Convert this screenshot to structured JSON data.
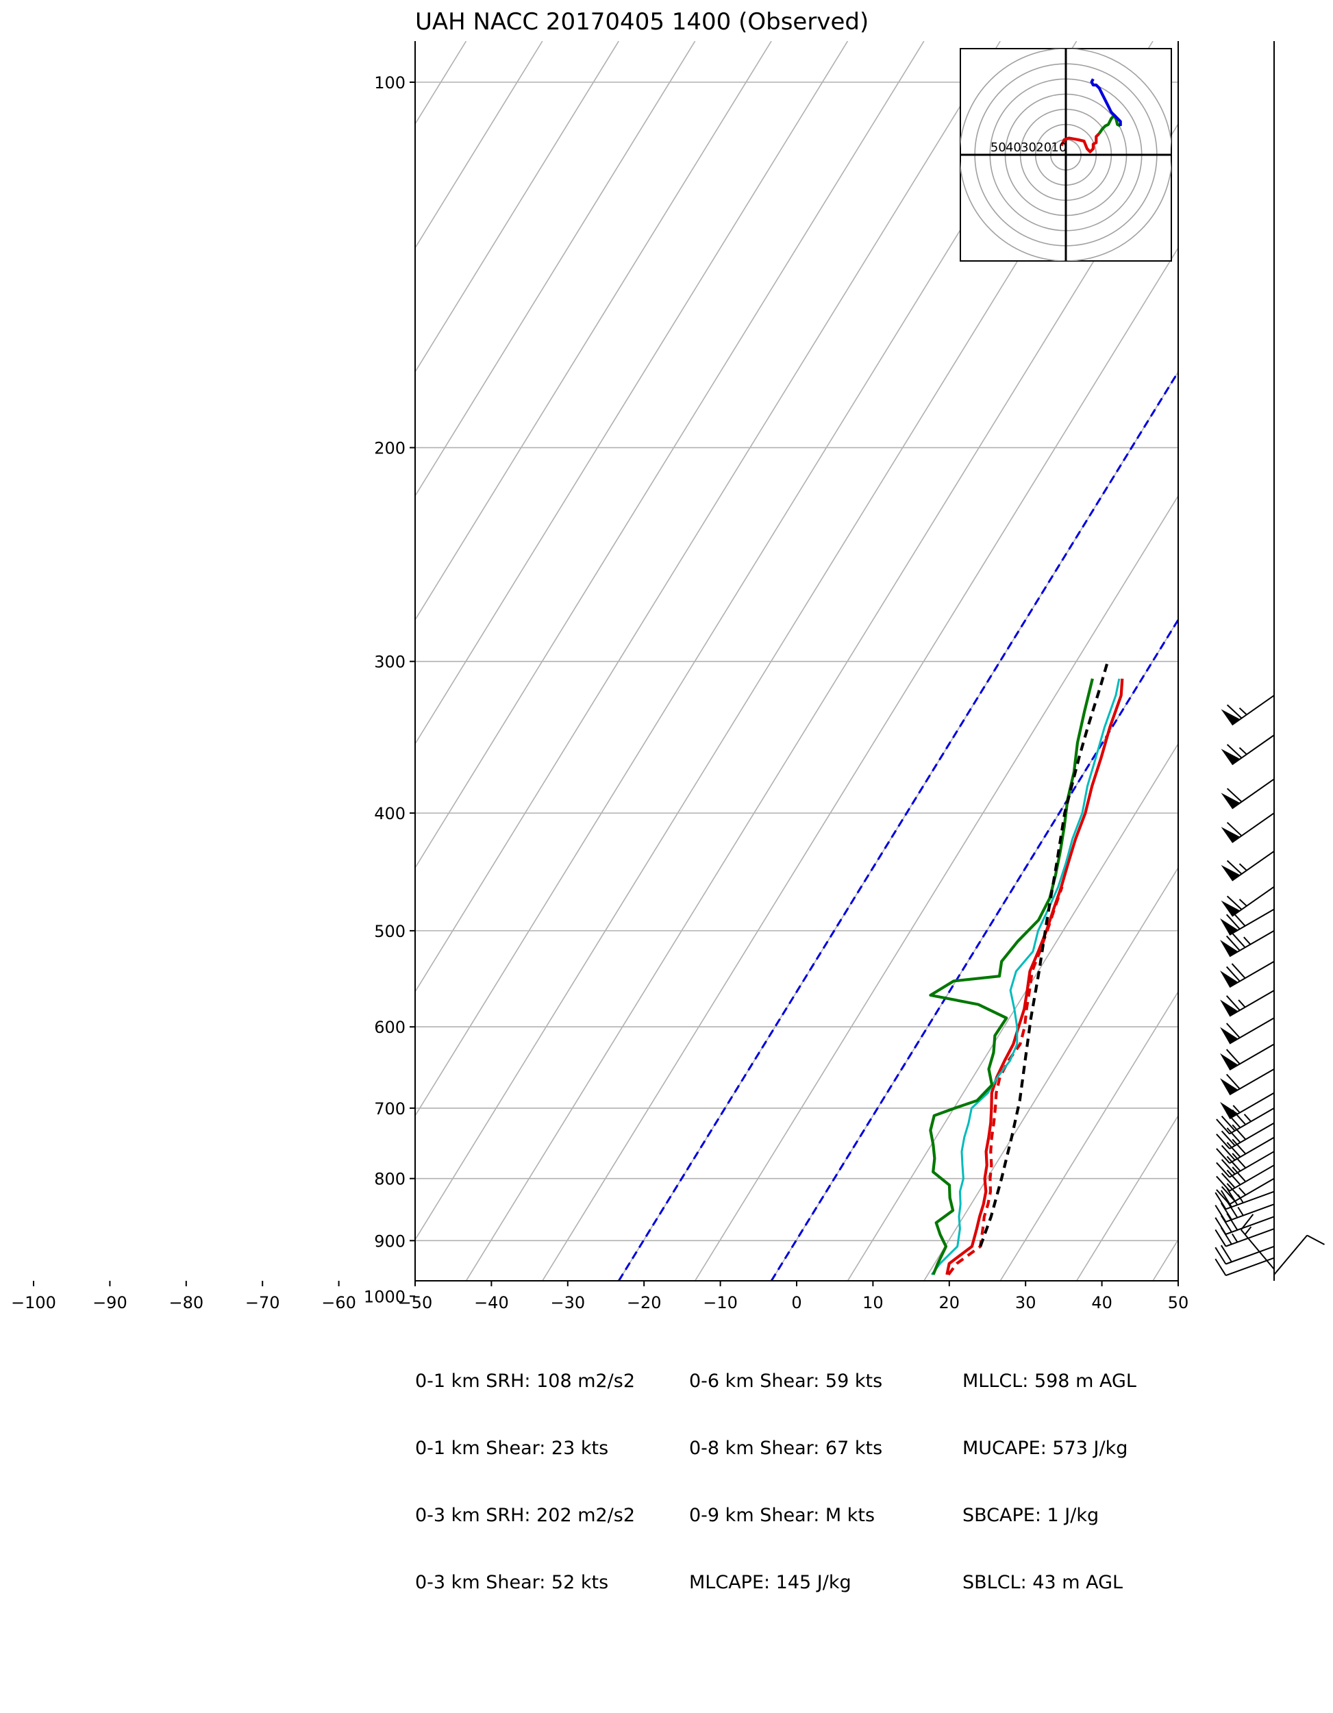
{
  "chart_data": [
    {
      "type": "line",
      "subtype": "skew-T log-P sounding",
      "title": "UAH NACC 20170405 1400   (Observed)",
      "xlabel": "",
      "ylabel": "",
      "x_ticks": [
        -100,
        -90,
        -80,
        -70,
        -60,
        -50,
        -40,
        -30,
        -20,
        -10,
        0,
        10,
        20,
        30,
        40,
        50
      ],
      "x_tick_labels": [
        "−100",
        "−90",
        "−80",
        "−70",
        "−60",
        "−50",
        "−40",
        "−30",
        "−20",
        "−10",
        "0",
        "10",
        "20",
        "30",
        "40",
        "50"
      ],
      "xlim": [
        -50,
        50
      ],
      "y_ticks": [
        100,
        200,
        300,
        400,
        500,
        600,
        700,
        800,
        900,
        1000
      ],
      "y_scale": "log",
      "ylim": [
        1050,
        100
      ],
      "grid": true,
      "skewed_isotherms_every": 10,
      "zero_isotherms": [
        -20,
        0
      ],
      "series": [
        {
          "color": "#dd0000",
          "style": "solid",
          "points": [
            [
              19.2,
              960
            ],
            [
              18.6,
              940
            ],
            [
              20.2,
              910
            ],
            [
              19.4,
              880
            ],
            [
              18.8,
              860
            ],
            [
              18.3,
              840
            ],
            [
              17.6,
              820
            ],
            [
              16.4,
              800
            ],
            [
              15.6,
              780
            ],
            [
              14.4,
              760
            ],
            [
              13.6,
              740
            ],
            [
              12.7,
              720
            ],
            [
              11.6,
              700
            ],
            [
              10.4,
              680
            ],
            [
              9.8,
              660
            ],
            [
              9.5,
              640
            ],
            [
              9.3,
              620
            ],
            [
              8.6,
              600
            ],
            [
              7.9,
              580
            ],
            [
              6.8,
              560
            ],
            [
              5.6,
              540
            ],
            [
              5.1,
              520
            ],
            [
              4.5,
              500
            ],
            [
              3.7,
              480
            ],
            [
              2.9,
              460
            ],
            [
              1.9,
              440
            ],
            [
              0.9,
              420
            ],
            [
              0.1,
              400
            ],
            [
              -1.2,
              380
            ],
            [
              -2.3,
              360
            ],
            [
              -3.6,
              340
            ],
            [
              -4.7,
              320
            ],
            [
              -5.9,
              310
            ]
          ]
        },
        {
          "color": "#dd0000",
          "style": "dashed",
          "points": [
            [
              19.4,
              960
            ],
            [
              19.6,
              940
            ],
            [
              21.3,
              910
            ],
            [
              20.2,
              880
            ],
            [
              19.4,
              860
            ],
            [
              18.9,
              840
            ],
            [
              18.2,
              820
            ],
            [
              17.1,
              800
            ],
            [
              16.2,
              780
            ],
            [
              15.0,
              760
            ],
            [
              14.0,
              740
            ],
            [
              13.1,
              720
            ],
            [
              12.1,
              700
            ],
            [
              11.0,
              680
            ],
            [
              10.2,
              660
            ],
            [
              10.0,
              640
            ],
            [
              10.2,
              620
            ],
            [
              9.4,
              600
            ],
            [
              8.2,
              580
            ],
            [
              7.1,
              560
            ],
            [
              5.9,
              540
            ],
            [
              5.3,
              520
            ],
            [
              4.6,
              500
            ],
            [
              3.8,
              480
            ],
            [
              3.0,
              460
            ]
          ]
        },
        {
          "color": "#00bbbb",
          "style": "solid",
          "points": [
            [
              17.2,
              960
            ],
            [
              17.4,
              940
            ],
            [
              18.3,
              910
            ],
            [
              17.2,
              880
            ],
            [
              16.1,
              860
            ],
            [
              15.3,
              840
            ],
            [
              14.2,
              820
            ],
            [
              13.6,
              800
            ],
            [
              12.4,
              780
            ],
            [
              11.2,
              760
            ],
            [
              10.4,
              740
            ],
            [
              9.8,
              720
            ],
            [
              9.0,
              700
            ],
            [
              9.9,
              680
            ],
            [
              9.9,
              660
            ],
            [
              10.2,
              640
            ],
            [
              9.8,
              620
            ],
            [
              8.4,
              600
            ],
            [
              6.6,
              580
            ],
            [
              4.6,
              560
            ],
            [
              3.8,
              540
            ],
            [
              4.4,
              520
            ],
            [
              3.4,
              500
            ],
            [
              3.0,
              480
            ],
            [
              2.5,
              460
            ],
            [
              1.6,
              440
            ],
            [
              0.5,
              420
            ],
            [
              -0.3,
              400
            ],
            [
              -1.8,
              380
            ],
            [
              -3.0,
              360
            ],
            [
              -4.3,
              340
            ],
            [
              -5.4,
              320
            ],
            [
              -6.3,
              310
            ]
          ]
        },
        {
          "color": "#007700",
          "style": "solid",
          "points": [
            [
              17.4,
              960
            ],
            [
              17.1,
              940
            ],
            [
              16.8,
              910
            ],
            [
              15.1,
              890
            ],
            [
              13.6,
              870
            ],
            [
              14.8,
              850
            ],
            [
              13.4,
              830
            ],
            [
              12.3,
              810
            ],
            [
              9.1,
              790
            ],
            [
              8.2,
              770
            ],
            [
              6.9,
              750
            ],
            [
              5.4,
              730
            ],
            [
              4.7,
              710
            ],
            [
              6.8,
              700
            ],
            [
              9.1,
              690
            ],
            [
              9.8,
              670
            ],
            [
              8.1,
              650
            ],
            [
              7.4,
              630
            ],
            [
              6.2,
              610
            ],
            [
              6.3,
              590
            ],
            [
              1.5,
              575
            ],
            [
              -5.5,
              565
            ],
            [
              -3.6,
              550
            ],
            [
              2.0,
              545
            ],
            [
              1.1,
              530
            ],
            [
              1.6,
              510
            ],
            [
              2.6,
              490
            ],
            [
              2.3,
              470
            ],
            [
              1.2,
              450
            ],
            [
              -0.1,
              430
            ],
            [
              -1.6,
              410
            ],
            [
              -3.3,
              390
            ],
            [
              -4.7,
              370
            ],
            [
              -6.6,
              350
            ],
            [
              -8.2,
              330
            ],
            [
              -9.8,
              310
            ]
          ]
        },
        {
          "color": "#000000",
          "style": "dashed",
          "points": [
            [
              21.3,
              910
            ],
            [
              20.3,
              860
            ],
            [
              18.6,
              800
            ],
            [
              16.6,
              740
            ],
            [
              14.7,
              690
            ],
            [
              12.2,
              640
            ],
            [
              9.5,
              590
            ],
            [
              6.8,
              540
            ],
            [
              3.7,
              490
            ],
            [
              0.4,
              440
            ],
            [
              -2.6,
              400
            ],
            [
              -5.2,
              360
            ],
            [
              -6.5,
              340
            ],
            [
              -8.1,
              315
            ],
            [
              -9.2,
              300
            ]
          ]
        }
      ]
    },
    {
      "type": "line",
      "subtype": "hodograph",
      "rings": [
        10,
        20,
        30,
        40,
        50,
        60,
        70
      ],
      "ring_labels": [
        "50",
        "40",
        "30",
        "20",
        "10"
      ],
      "series": [
        {
          "color": "#dd0000",
          "points": [
            [
              -3,
              6
            ],
            [
              -1,
              10
            ],
            [
              2,
              11
            ],
            [
              8,
              10
            ],
            [
              12,
              9
            ],
            [
              14,
              4
            ],
            [
              16,
              2
            ],
            [
              18,
              4
            ],
            [
              18,
              7
            ],
            [
              20,
              8
            ],
            [
              20,
              12
            ],
            [
              22,
              14
            ]
          ]
        },
        {
          "color": "#007700",
          "points": [
            [
              22,
              14
            ],
            [
              24,
              17
            ],
            [
              26,
              19
            ],
            [
              28,
              20
            ],
            [
              30,
              24
            ],
            [
              32,
              26
            ],
            [
              33,
              24
            ],
            [
              34,
              20
            ],
            [
              36,
              19
            ]
          ]
        },
        {
          "color": "#0000dd",
          "points": [
            [
              36,
              19
            ],
            [
              36,
              22
            ],
            [
              34,
              24
            ],
            [
              32,
              26
            ],
            [
              30,
              28
            ],
            [
              28,
              32
            ],
            [
              26,
              36
            ],
            [
              24,
              40
            ],
            [
              22,
              44
            ],
            [
              20,
              46
            ],
            [
              18,
              46
            ],
            [
              17,
              48
            ],
            [
              18,
              50
            ]
          ]
        }
      ]
    }
  ],
  "wind_barbs_kts": [
    {
      "p": 960,
      "speed": 10,
      "dir": 40
    },
    {
      "p": 950,
      "speed": 15,
      "dir": 320
    },
    {
      "p": 930,
      "speed": 10,
      "dir": 250
    },
    {
      "p": 910,
      "speed": 20,
      "dir": 250
    },
    {
      "p": 880,
      "speed": 25,
      "dir": 250
    },
    {
      "p": 860,
      "speed": 30,
      "dir": 250
    },
    {
      "p": 840,
      "speed": 35,
      "dir": 250
    },
    {
      "p": 820,
      "speed": 35,
      "dir": 250
    },
    {
      "p": 800,
      "speed": 35,
      "dir": 240
    },
    {
      "p": 780,
      "speed": 40,
      "dir": 240
    },
    {
      "p": 760,
      "speed": 40,
      "dir": 240
    },
    {
      "p": 740,
      "speed": 40,
      "dir": 240
    },
    {
      "p": 720,
      "speed": 40,
      "dir": 240
    },
    {
      "p": 700,
      "speed": 45,
      "dir": 240
    },
    {
      "p": 680,
      "speed": 55,
      "dir": 240
    },
    {
      "p": 650,
      "speed": 60,
      "dir": 240
    },
    {
      "p": 620,
      "speed": 60,
      "dir": 240
    },
    {
      "p": 590,
      "speed": 60,
      "dir": 240
    },
    {
      "p": 560,
      "speed": 65,
      "dir": 240
    },
    {
      "p": 530,
      "speed": 70,
      "dir": 240
    },
    {
      "p": 500,
      "speed": 75,
      "dir": 240
    },
    {
      "p": 480,
      "speed": 70,
      "dir": 240
    },
    {
      "p": 460,
      "speed": 65,
      "dir": 235
    },
    {
      "p": 430,
      "speed": 65,
      "dir": 235
    },
    {
      "p": 400,
      "speed": 60,
      "dir": 235
    },
    {
      "p": 375,
      "speed": 60,
      "dir": 235
    },
    {
      "p": 345,
      "speed": 65,
      "dir": 235
    },
    {
      "p": 320,
      "speed": 65,
      "dir": 235
    }
  ],
  "stats": {
    "col1": [
      "0-1 km SRH: 108 m2/s2",
      "0-1 km Shear: 23 kts",
      "0-3 km SRH: 202 m2/s2",
      "0-3 km Shear: 52 kts"
    ],
    "col2": [
      "0-6 km Shear: 59 kts",
      "0-8 km Shear: 67 kts",
      "0-9 km Shear: M kts",
      "MLCAPE: 145 J/kg"
    ],
    "col3": [
      "MLLCL: 598 m AGL",
      "MUCAPE: 573 J/kg",
      "SBCAPE: 1 J/kg",
      "SBLCL: 43 m AGL"
    ]
  },
  "colors": {
    "temperature": "#dd0000",
    "virtual_temperature": "#dd0000",
    "wetbulb": "#00bbbb",
    "dewpoint": "#007700",
    "parcel": "#000000",
    "zero_isotherm": "#0000dd",
    "grid": "#b0b0b0"
  }
}
